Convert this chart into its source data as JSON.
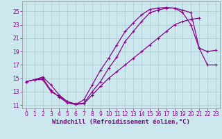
{
  "xlabel": "Windchill (Refroidissement éolien,°C)",
  "background_color": "#cce8ee",
  "grid_color": "#aacccc",
  "line_color": "#880088",
  "xlim": [
    -0.5,
    23.5
  ],
  "ylim": [
    10.5,
    26.5
  ],
  "xticks": [
    0,
    1,
    2,
    3,
    4,
    5,
    6,
    7,
    8,
    9,
    10,
    11,
    12,
    13,
    14,
    15,
    16,
    17,
    18,
    19,
    20,
    21,
    22,
    23
  ],
  "yticks": [
    11,
    13,
    15,
    17,
    19,
    21,
    23,
    25
  ],
  "curve1_x": [
    0,
    1,
    2,
    3,
    4,
    5,
    6,
    7,
    8,
    9,
    10,
    11,
    12,
    13,
    14,
    15,
    16,
    17,
    18,
    19,
    20,
    21
  ],
  "curve1_y": [
    14.5,
    14.8,
    15.0,
    13.2,
    12.2,
    11.3,
    11.1,
    11.2,
    12.5,
    13.8,
    15.0,
    16.0,
    17.0,
    18.0,
    19.0,
    20.0,
    21.0,
    22.0,
    23.0,
    23.5,
    23.8,
    24.0
  ],
  "curve2_x": [
    0,
    1,
    2,
    3,
    4,
    5,
    6,
    7,
    8,
    9,
    10,
    11,
    12,
    13,
    14,
    15,
    16,
    17,
    18,
    19,
    20,
    21,
    22,
    23
  ],
  "curve2_y": [
    14.5,
    14.8,
    15.2,
    14.0,
    12.5,
    11.5,
    11.2,
    11.3,
    13.0,
    14.5,
    16.5,
    18.2,
    20.5,
    22.0,
    23.5,
    24.8,
    25.2,
    25.5,
    25.5,
    24.8,
    23.0,
    19.5,
    19.0,
    19.2
  ],
  "curve3_x": [
    0,
    1,
    2,
    3,
    4,
    5,
    6,
    7,
    8,
    9,
    10,
    11,
    12,
    13,
    14,
    15,
    16,
    17,
    18,
    19,
    20,
    21,
    22,
    23
  ],
  "curve3_y": [
    14.5,
    14.8,
    14.8,
    13.0,
    12.3,
    11.5,
    11.1,
    11.8,
    14.0,
    16.2,
    18.0,
    20.0,
    22.0,
    23.3,
    24.5,
    25.3,
    25.5,
    25.6,
    25.5,
    25.2,
    24.8,
    19.5,
    17.0,
    17.0
  ],
  "marker": "+",
  "markersize": 3,
  "linewidth": 0.9,
  "tick_fontsize": 5.5,
  "xlabel_fontsize": 6.5
}
